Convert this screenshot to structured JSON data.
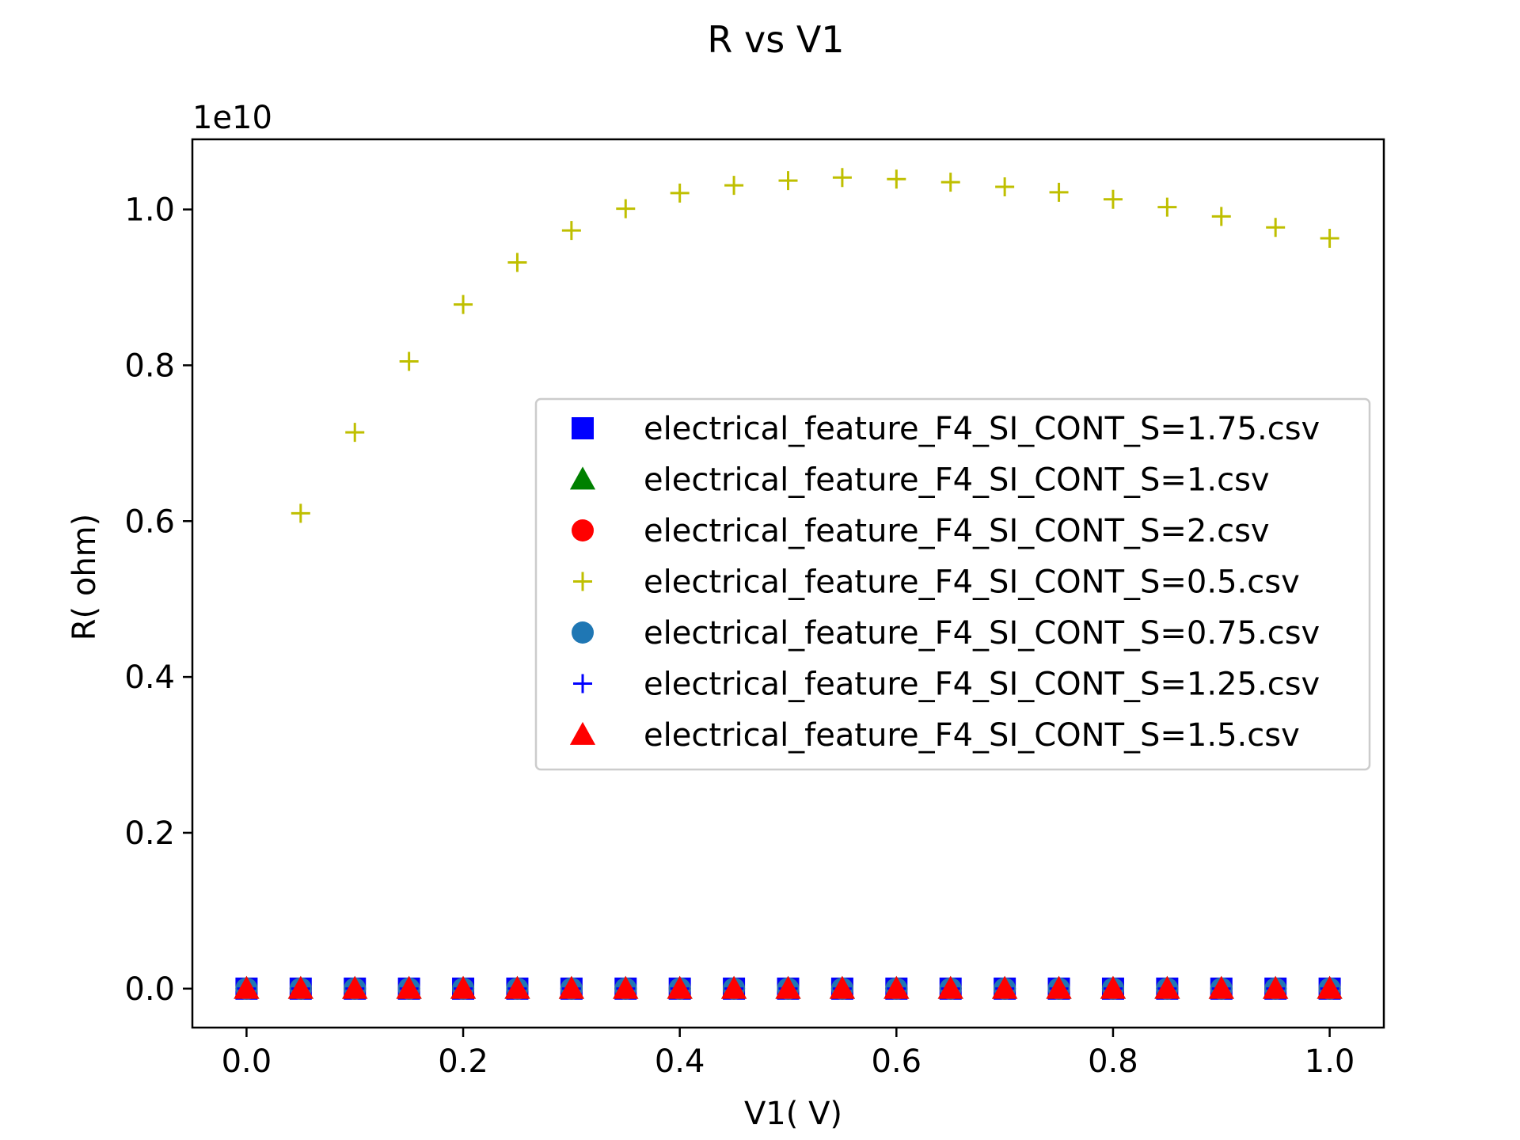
{
  "chart_data": {
    "type": "scatter",
    "title": "R vs V1",
    "xlabel": "V1( V)",
    "ylabel": "R( ohm)",
    "offset_label": "1e10",
    "xlim": [
      -0.05,
      1.05
    ],
    "ylim": [
      -0.05,
      1.09
    ],
    "xticks": [
      0.0,
      0.2,
      0.4,
      0.6,
      0.8,
      1.0
    ],
    "xtick_labels": [
      "0.0",
      "0.2",
      "0.4",
      "0.6",
      "0.8",
      "1.0"
    ],
    "yticks": [
      0.0,
      0.2,
      0.4,
      0.6,
      0.8,
      1.0
    ],
    "ytick_labels": [
      "0.0",
      "0.2",
      "0.4",
      "0.6",
      "0.8",
      "1.0"
    ],
    "grid": false,
    "legend_position": "center-right",
    "x": [
      0.0,
      0.05,
      0.1,
      0.15,
      0.2,
      0.25,
      0.3,
      0.35,
      0.4,
      0.45,
      0.5,
      0.55,
      0.6,
      0.65,
      0.7,
      0.75,
      0.8,
      0.85,
      0.9,
      0.95,
      1.0
    ],
    "series": [
      {
        "name": "electrical_feature_F4_SI_CONT_S=1.75.csv",
        "marker": "square",
        "color": "#0000ff",
        "values": [
          0,
          0,
          0,
          0,
          0,
          0,
          0,
          0,
          0,
          0,
          0,
          0,
          0,
          0,
          0,
          0,
          0,
          0,
          0,
          0,
          0
        ]
      },
      {
        "name": "electrical_feature_F4_SI_CONT_S=1.csv",
        "marker": "triangle",
        "color": "#008000",
        "values": [
          0,
          0,
          0,
          0,
          0,
          0,
          0,
          0,
          0,
          0,
          0,
          0,
          0,
          0,
          0,
          0,
          0,
          0,
          0,
          0,
          0
        ]
      },
      {
        "name": "electrical_feature_F4_SI_CONT_S=2.csv",
        "marker": "circle",
        "color": "#ff0000",
        "values": [
          0,
          0,
          0,
          0,
          0,
          0,
          0,
          0,
          0,
          0,
          0,
          0,
          0,
          0,
          0,
          0,
          0,
          0,
          0,
          0,
          0
        ]
      },
      {
        "name": "electrical_feature_F4_SI_CONT_S=0.5.csv",
        "marker": "plus",
        "color": "#bfbf00",
        "values": [
          null,
          0.61,
          0.714,
          0.805,
          0.878,
          0.932,
          0.973,
          1.001,
          1.021,
          1.031,
          1.037,
          1.041,
          1.039,
          1.035,
          1.029,
          1.022,
          1.013,
          1.003,
          0.991,
          0.977,
          0.963
        ]
      },
      {
        "name": "electrical_feature_F4_SI_CONT_S=0.75.csv",
        "marker": "circle",
        "color": "#1f77b4",
        "values": [
          0,
          0,
          0,
          0,
          0,
          0,
          0,
          0,
          0,
          0,
          0,
          0,
          0,
          0,
          0,
          0,
          0,
          0,
          0,
          0,
          0
        ]
      },
      {
        "name": "electrical_feature_F4_SI_CONT_S=1.25.csv",
        "marker": "plus",
        "color": "#0000ff",
        "values": [
          0,
          0,
          0,
          0,
          0,
          0,
          0,
          0,
          0,
          0,
          0,
          0,
          0,
          0,
          0,
          0,
          0,
          0,
          0,
          0,
          0
        ]
      },
      {
        "name": "electrical_feature_F4_SI_CONT_S=1.5.csv",
        "marker": "triangle",
        "color": "#ff0000",
        "values": [
          0,
          0,
          0,
          0,
          0,
          0,
          0,
          0,
          0,
          0,
          0,
          0,
          0,
          0,
          0,
          0,
          0,
          0,
          0,
          0,
          0
        ]
      }
    ]
  }
}
